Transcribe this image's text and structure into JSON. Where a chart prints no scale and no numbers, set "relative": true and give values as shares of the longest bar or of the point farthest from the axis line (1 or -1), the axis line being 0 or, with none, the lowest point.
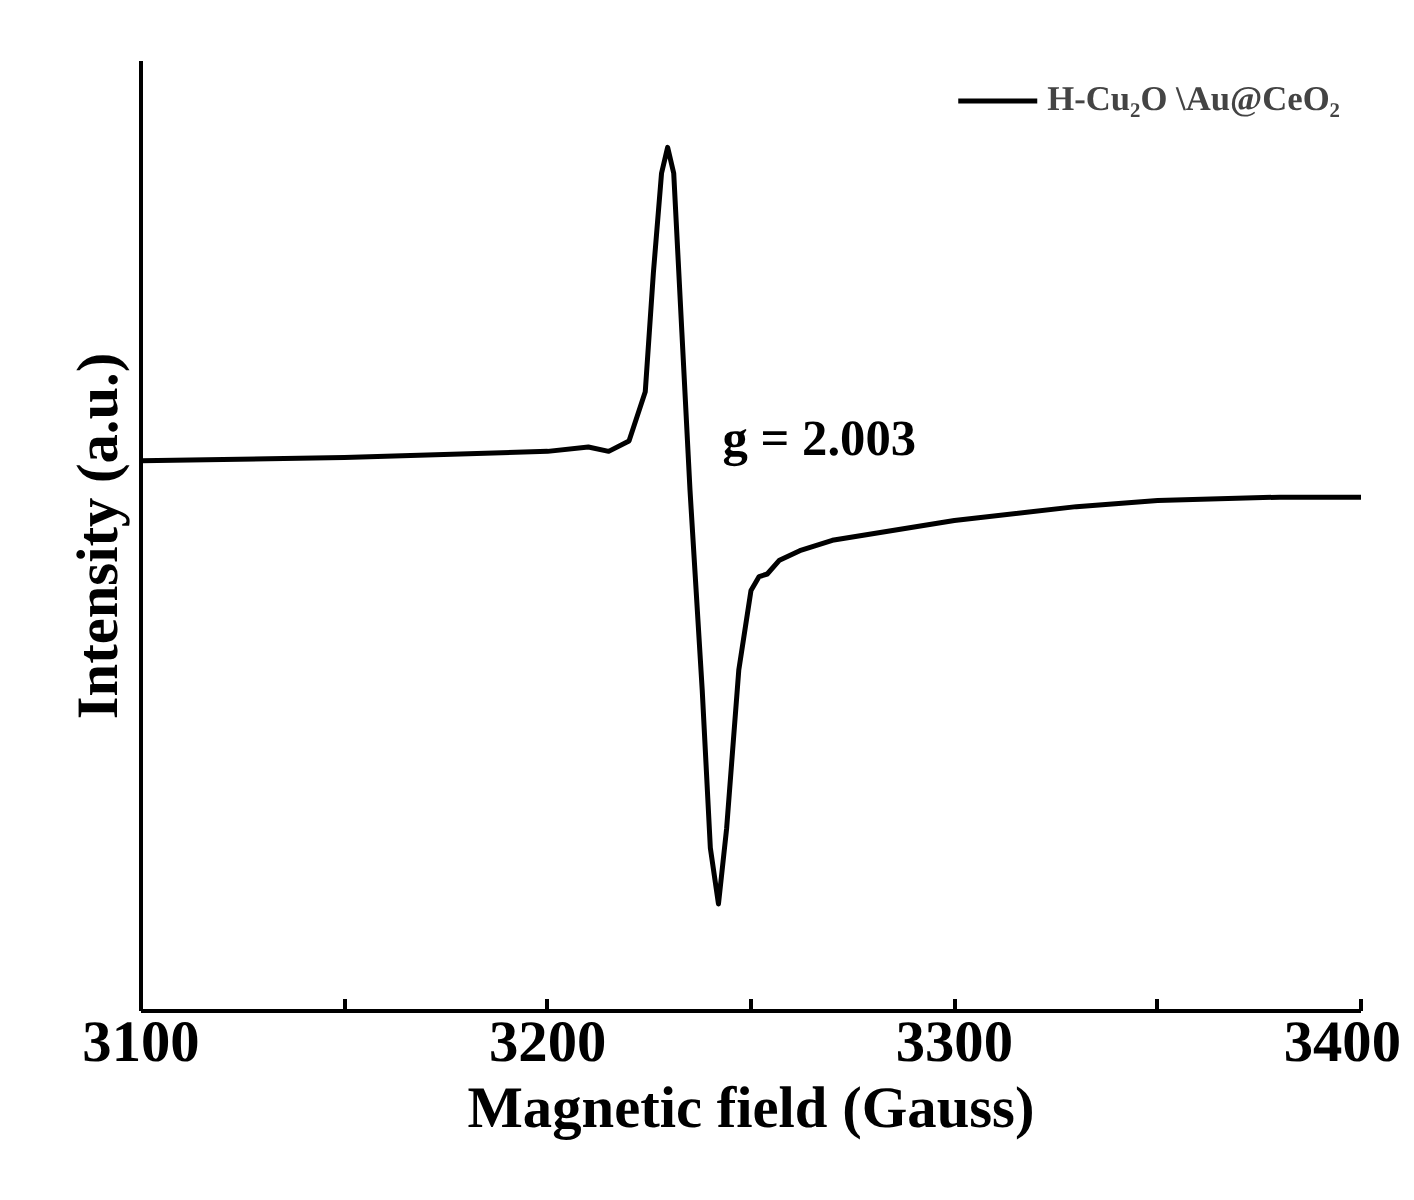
{
  "chart_data": {
    "type": "line",
    "xlabel": "Magnetic field (Gauss)",
    "ylabel": "Intensity (a.u.)",
    "relative": true,
    "tick_labels": "x",
    "grid": false,
    "legend": "top right",
    "marker": "none",
    "line_style": "solid",
    "xlim": [
      3100,
      3400
    ],
    "xticks": [
      3100,
      {
        "value": 3150,
        "label": null
      },
      3200,
      {
        "value": 3250,
        "label": null
      },
      3300,
      {
        "value": 3350,
        "label": null
      },
      3400
    ],
    "annotations": [
      "g = 2.003"
    ],
    "series": [
      {
        "name": "H-Cu₂O \\Au@CeO₂",
        "color": "#000000",
        "x": [
          3100,
          3150,
          3200,
          3210,
          3215,
          3220,
          3224,
          3226,
          3228,
          3229.5,
          3231,
          3233,
          3235,
          3238,
          3240,
          3242,
          3244,
          3247,
          3250,
          3252,
          3254,
          3257,
          3262,
          3270,
          3300,
          3330,
          3350,
          3380,
          3400
        ],
        "values": [
          0.637,
          0.641,
          0.648,
          0.653,
          0.648,
          0.66,
          0.717,
          0.855,
          0.97,
          1.0,
          0.97,
          0.786,
          0.603,
          0.372,
          0.189,
          0.124,
          0.211,
          0.395,
          0.487,
          0.503,
          0.506,
          0.522,
          0.533,
          0.545,
          0.568,
          0.584,
          0.591,
          0.595,
          0.595
        ]
      }
    ]
  }
}
